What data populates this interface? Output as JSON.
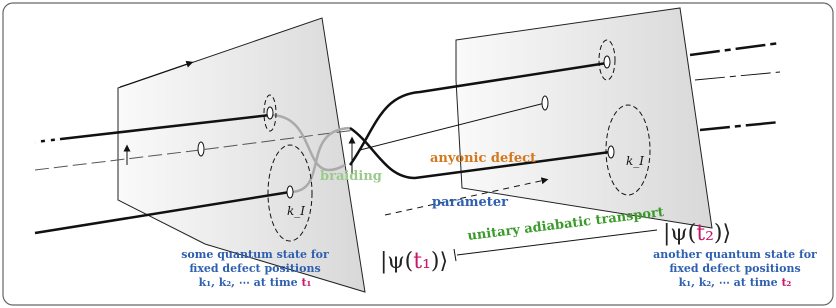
{
  "labels": {
    "braiding": "braiding",
    "anyonic_defect": "anyonic defect",
    "parameter": "parameter",
    "k_left": "k_I",
    "k_right": "k_I",
    "transport": "unitary adiabatic transport"
  },
  "state_left": {
    "open": "|ψ(",
    "time": "t₁",
    "close": ")⟩",
    "caption": [
      "some quantum state for",
      "fixed defect positions"
    ],
    "caption_time": {
      "prefix": "k₁, k₂, ⋯ at time ",
      "time": "t₁"
    }
  },
  "state_right": {
    "open": "|ψ(",
    "time": "t₂",
    "close": ")⟩",
    "caption": [
      "another quantum state for",
      "fixed defect positions"
    ],
    "caption_time": {
      "prefix": "k₁, k₂, ⋯ at time ",
      "time": "t₂"
    }
  }
}
